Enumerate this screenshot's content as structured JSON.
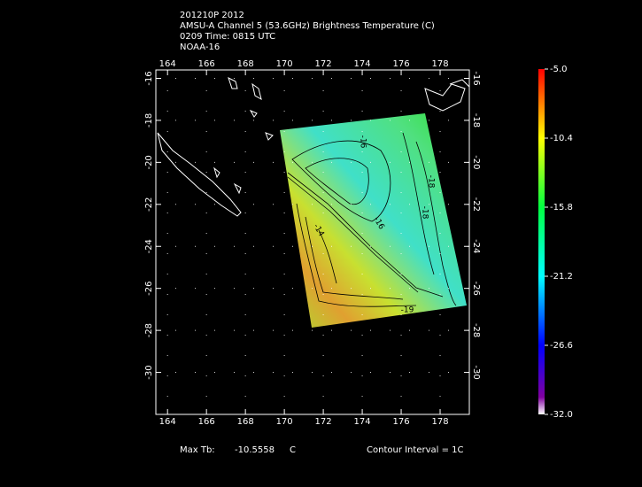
{
  "header": {
    "lines": [
      "201210P 2012",
      "AMSU-A Channel 5 (53.6GHz) Brightness Temperature (C)",
      "0209 Time: 0815 UTC",
      "NOAA-16"
    ]
  },
  "map": {
    "xlim": [
      163.4,
      179.5
    ],
    "ylim": [
      -15.6,
      -32
    ],
    "xticks": [
      164,
      166,
      168,
      170,
      172,
      174,
      176,
      178
    ],
    "yticks": [
      -16,
      -18,
      -20,
      -22,
      -24,
      -26,
      -28,
      -30
    ],
    "contour_labels": [
      "-16",
      "-18",
      "-18",
      "-14",
      "-19",
      "-16"
    ]
  },
  "colorbar": {
    "lim": [
      -32,
      -5
    ],
    "ticks": [
      {
        "value": -5,
        "label": "-5.0"
      },
      {
        "value": -10.4,
        "label": "-10.4"
      },
      {
        "value": -15.8,
        "label": "-15.8"
      },
      {
        "value": -21.2,
        "label": "-21.2"
      },
      {
        "value": -26.6,
        "label": "-26.6"
      },
      {
        "value": -32,
        "label": "-32.0"
      }
    ]
  },
  "footer": {
    "max_label": "Max Tb:",
    "max_value": -10.5558,
    "unit": "C",
    "contour": "Contour Interval = 1C"
  }
}
